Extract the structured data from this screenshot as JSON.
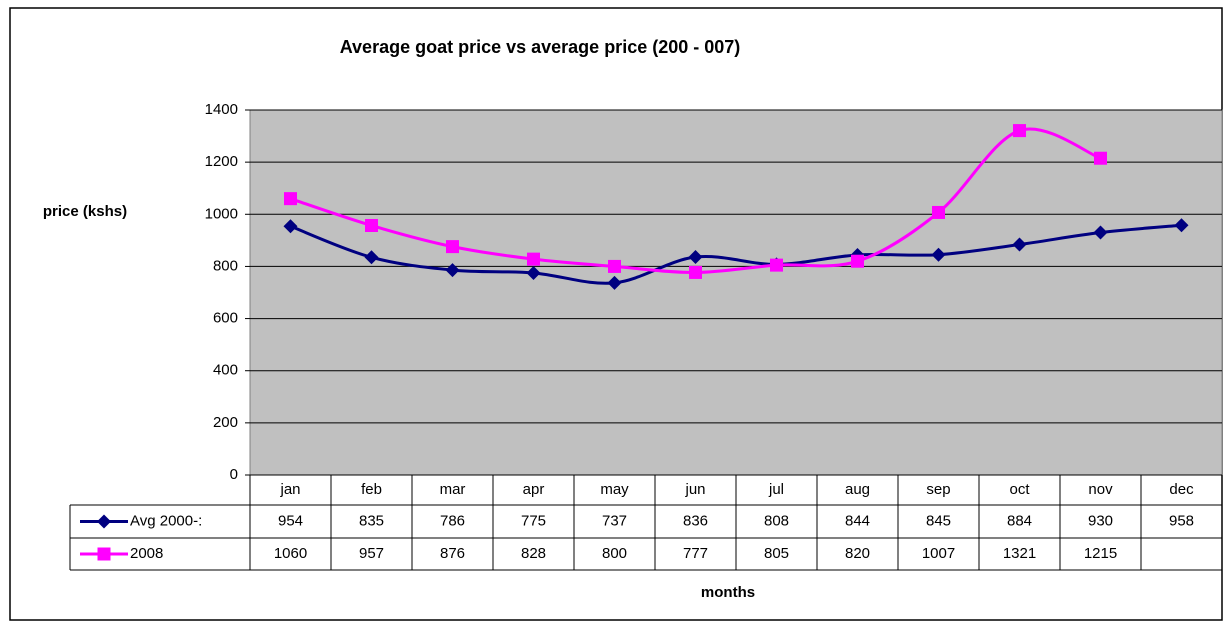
{
  "chart_data": {
    "type": "line",
    "title": "Average goat price vs average price (200 - 007)",
    "y_label": "price (kshs)",
    "x_label": "months",
    "categories": [
      "jan",
      "feb",
      "mar",
      "apr",
      "may",
      "jun",
      "jul",
      "aug",
      "sep",
      "oct",
      "nov",
      "dec"
    ],
    "series": [
      {
        "name": "Avg 2000-:",
        "color": "#000080",
        "marker": "diamond",
        "values": [
          954,
          835,
          786,
          775,
          737,
          836,
          808,
          844,
          845,
          884,
          930,
          958
        ]
      },
      {
        "name": "2008",
        "color": "#ff00ff",
        "marker": "square",
        "values": [
          1060,
          957,
          876,
          828,
          800,
          777,
          805,
          820,
          1007,
          1321,
          1215,
          null
        ]
      }
    ],
    "ylim": [
      0,
      1400
    ],
    "yticks": [
      0,
      200,
      400,
      600,
      800,
      1000,
      1200,
      1400
    ],
    "grid": true,
    "smooth": true,
    "data_table": true,
    "plot_background": "#c0c0c0"
  }
}
